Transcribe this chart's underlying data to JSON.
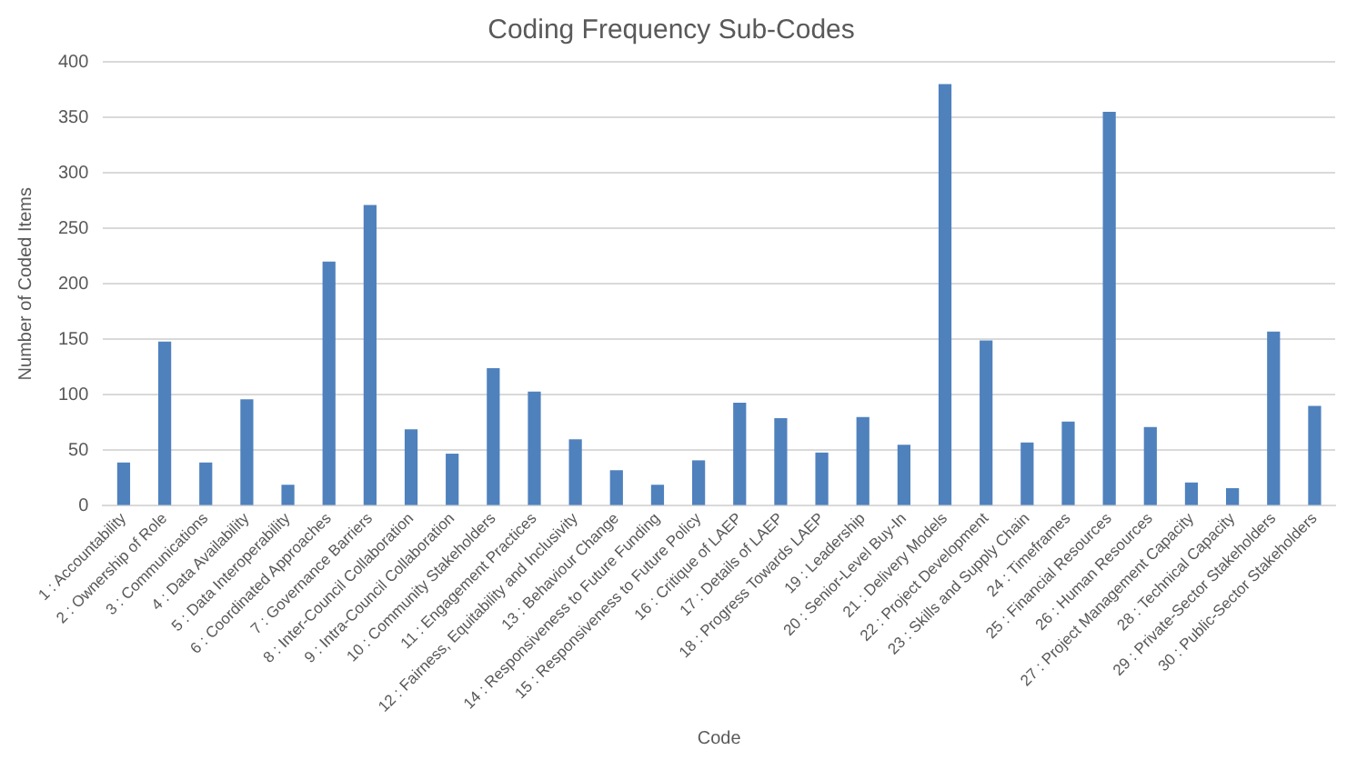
{
  "chart_data": {
    "type": "bar",
    "title": "Coding Frequency Sub-Codes",
    "xlabel": "Code",
    "ylabel": "Number of Coded Items",
    "categories": [
      "1 : Accountability",
      "2 : Ownership of Role",
      "3 : Communications",
      "4 : Data Availability",
      "5 : Data Interoperability",
      "6 : Coordinated Approaches",
      "7 : Governance Barriers",
      "8 : Inter-Council Collaboration",
      "9 : Intra-Council Collaboration",
      "10 : Community Stakeholders",
      "11 : Engagement Practices",
      "12 : Fairness, Equitability and Inclusivity",
      "13 : Behaviour Change",
      "14 : Responsiveness to Future Funding",
      "15 : Responsiveness to Future Policy",
      "16 : Critique of LAEP",
      "17 : Details of LAEP",
      "18 : Progress Towards LAEP",
      "19 : Leadership",
      "20 : Senior-Level Buy-In",
      "21 : Delivery Models",
      "22 : Project Development",
      "23 : Skills and Supply Chain",
      "24 : Timeframes",
      "25 : Financial Resources",
      "26 : Human Resources",
      "27 : Project Management Capacity",
      "28 : Technical Capacity",
      "29 : Private-Sector Stakeholders",
      "30 : Public-Sector Stakeholders"
    ],
    "values": [
      39,
      148,
      39,
      96,
      19,
      220,
      271,
      69,
      47,
      124,
      103,
      60,
      32,
      19,
      41,
      93,
      79,
      48,
      80,
      55,
      380,
      149,
      57,
      76,
      355,
      71,
      21,
      16,
      157,
      90
    ],
    "color": "#4f81bd",
    "ylim": [
      0,
      400
    ],
    "yticks": [
      0,
      50,
      100,
      150,
      200,
      250,
      300,
      350,
      400
    ],
    "grid": "y",
    "legend": false
  }
}
